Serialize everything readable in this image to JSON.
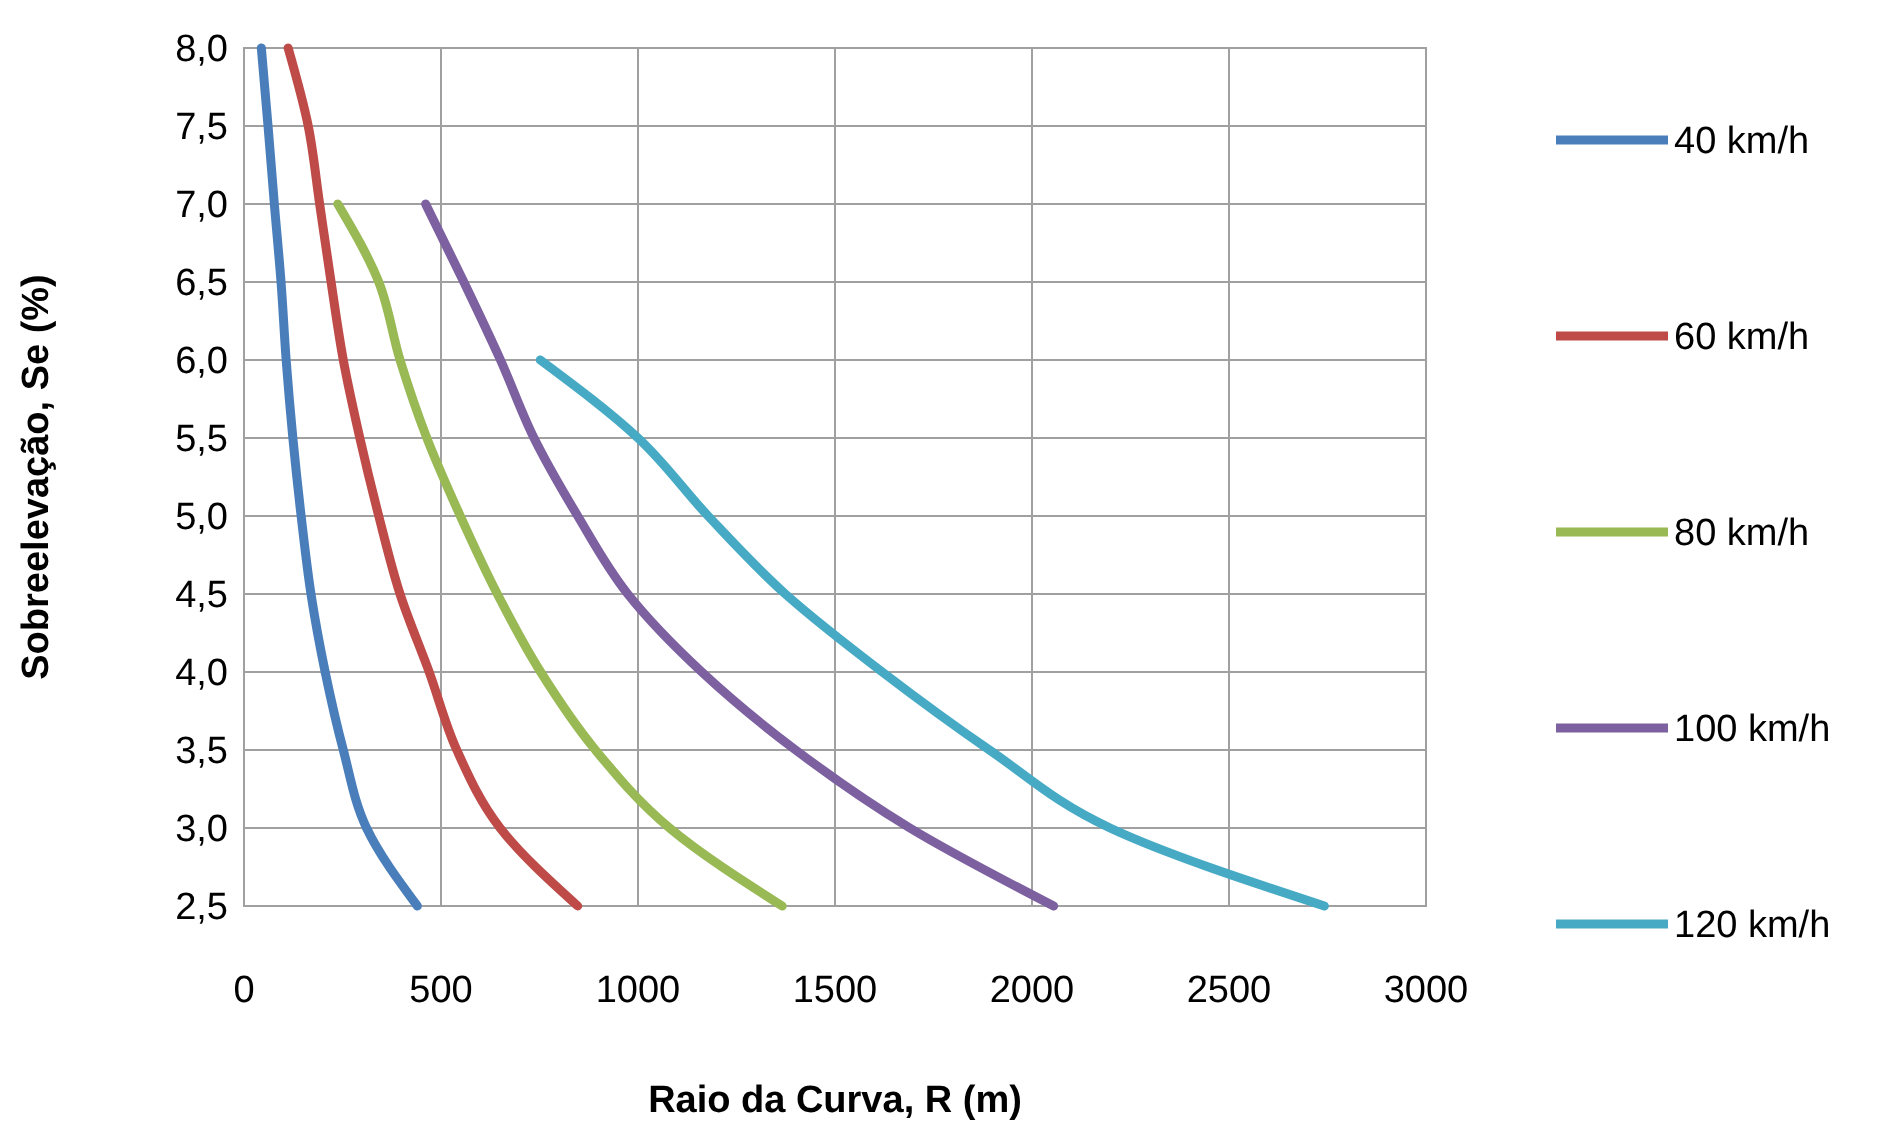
{
  "chart_data": {
    "type": "line",
    "xlabel": "Raio da Curva, R (m)",
    "ylabel": "Sobreelevação, Se (%)",
    "xlim": [
      0,
      3000
    ],
    "xticks": [
      0,
      500,
      1000,
      1500,
      2000,
      2500,
      3000
    ],
    "ylim": [
      2.5,
      8.0
    ],
    "yticks": [
      {
        "value": 2.5,
        "label": "2,5"
      },
      {
        "value": 3.0,
        "label": "3,0"
      },
      {
        "value": 3.5,
        "label": "3,5"
      },
      {
        "value": 4.0,
        "label": "4,0"
      },
      {
        "value": 4.5,
        "label": "4,5"
      },
      {
        "value": 5.0,
        "label": "5,0"
      },
      {
        "value": 5.5,
        "label": "5,5"
      },
      {
        "value": 6.0,
        "label": "6,0"
      },
      {
        "value": 6.5,
        "label": "6,5"
      },
      {
        "value": 7.0,
        "label": "7,0"
      },
      {
        "value": 7.5,
        "label": "7,5"
      },
      {
        "value": 8.0,
        "label": "8,0"
      }
    ],
    "grid": true,
    "legend": "right",
    "marker": "none",
    "line_style": "solid",
    "series": [
      {
        "name": "40 km/h",
        "color": "#4a7ebb",
        "x": [
          44,
          61,
          77,
          94,
          107,
          124,
          145,
          170,
          206,
          252,
          311,
          440
        ],
        "values": [
          8.0,
          7.5,
          7.0,
          6.5,
          6.0,
          5.5,
          5.0,
          4.5,
          4.0,
          3.5,
          3.0,
          2.5
        ]
      },
      {
        "name": "60 km/h",
        "color": "#be4b48",
        "x": [
          112,
          163,
          192,
          221,
          252,
          294,
          342,
          396,
          470,
          540,
          650,
          847
        ],
        "values": [
          8.0,
          7.5,
          7.0,
          6.5,
          6.0,
          5.5,
          5.0,
          4.5,
          4.0,
          3.5,
          3.0,
          2.5
        ]
      },
      {
        "name": "80 km/h",
        "color": "#98b954",
        "x": [
          238,
          342,
          396,
          464,
          549,
          643,
          753,
          892,
          1080,
          1366
        ],
        "values": [
          7.0,
          6.5,
          6.0,
          5.5,
          5.0,
          4.5,
          4.0,
          3.5,
          3.0,
          2.5
        ]
      },
      {
        "name": "100 km/h",
        "color": "#7d60a0",
        "x": [
          461,
          558,
          651,
          736,
          847,
          974,
          1162,
          1400,
          1690,
          2055
        ],
        "values": [
          7.0,
          6.5,
          6.0,
          5.5,
          5.0,
          4.5,
          4.0,
          3.5,
          3.0,
          2.5
        ]
      },
      {
        "name": "120 km/h",
        "color": "#46aac5",
        "x": [
          752,
          1000,
          1178,
          1374,
          1620,
          1892,
          2198,
          2742
        ],
        "values": [
          6.0,
          5.5,
          5.0,
          4.5,
          4.0,
          3.5,
          3.0,
          2.5
        ]
      }
    ]
  }
}
